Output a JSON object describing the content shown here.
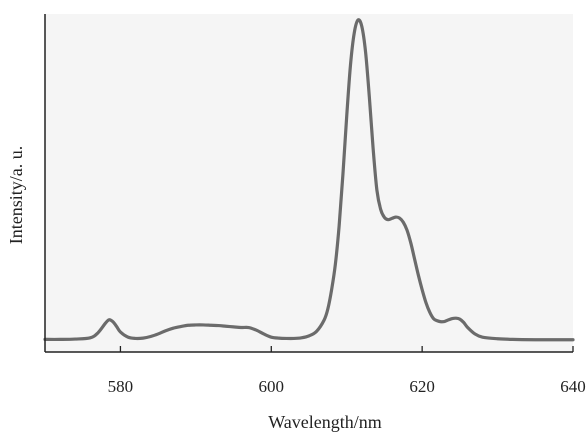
{
  "chart_data": {
    "type": "line",
    "title": "",
    "xlabel": "Wavelength/nm",
    "ylabel": "Intensity/a. u.",
    "xlim": [
      570,
      640
    ],
    "ylim": [
      0,
      100
    ],
    "x_ticks": [
      580,
      600,
      620,
      640
    ],
    "x_tick_labels": [
      "580",
      "600",
      "620",
      "640"
    ],
    "y_ticks": [],
    "grid": false,
    "legend": "none",
    "colors": {
      "line": "#6b6b6b",
      "plot_background": "#f5f5f5",
      "axis": "#222222"
    },
    "series": [
      {
        "x": [
          570,
          572,
          574,
          576,
          577,
          578,
          578.5,
          579,
          579.5,
          580,
          581,
          582,
          583,
          584,
          585,
          586,
          587,
          588,
          589,
          590,
          591,
          592,
          593,
          594,
          595,
          596,
          597,
          598,
          599,
          600,
          601,
          602,
          603,
          604,
          605,
          606,
          607,
          607.5,
          608,
          608.5,
          609,
          609.5,
          610,
          610.5,
          611,
          611.5,
          612,
          612.5,
          613,
          613.5,
          614,
          614.5,
          615,
          615.5,
          616,
          616.5,
          617,
          617.5,
          618,
          618.5,
          619,
          619.5,
          620,
          620.5,
          621,
          621.5,
          622,
          622.5,
          623,
          623.5,
          624,
          624.5,
          625,
          625.5,
          626,
          627,
          628,
          630,
          632,
          635,
          638,
          640
        ],
        "y": [
          0.5,
          0.5,
          0.6,
          1.0,
          2.5,
          5.5,
          6.6,
          6.0,
          4.5,
          2.8,
          1.2,
          0.8,
          0.9,
          1.4,
          2.2,
          3.2,
          4.0,
          4.5,
          4.9,
          5.0,
          5.0,
          4.9,
          4.8,
          4.6,
          4.4,
          4.2,
          4.2,
          3.4,
          2.2,
          1.2,
          0.9,
          0.8,
          0.8,
          1.0,
          1.6,
          3.0,
          6.5,
          10.0,
          16.0,
          24.0,
          36.0,
          52.0,
          70.0,
          86.0,
          96.0,
          100.0,
          98.0,
          90.0,
          76.0,
          60.0,
          47.0,
          41.0,
          38.5,
          37.8,
          38.2,
          38.6,
          38.3,
          37.0,
          34.5,
          30.5,
          25.5,
          20.5,
          16.0,
          12.0,
          9.0,
          7.0,
          6.3,
          6.0,
          6.1,
          6.6,
          7.0,
          7.1,
          6.8,
          5.8,
          4.3,
          2.2,
          1.2,
          0.7,
          0.5,
          0.4,
          0.4,
          0.4
        ]
      }
    ]
  }
}
